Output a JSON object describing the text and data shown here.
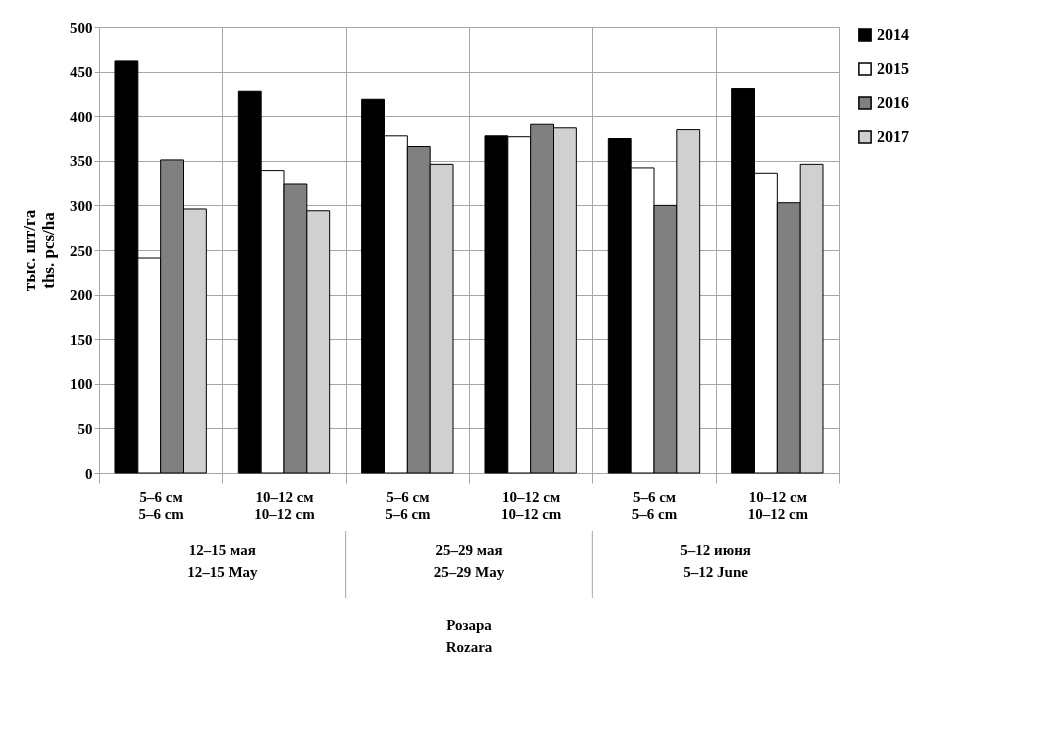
{
  "chart_data": {
    "type": "bar",
    "ylabel": "тыс. шт/га\nths. pcs/ha",
    "categories": [
      "5–6 см\n5–6 cm",
      "10–12 см\n10–12 cm",
      "5–6 см\n5–6 cm",
      "10–12 см\n10–12 cm",
      "5–6 см\n5–6 cm",
      "10–12 см\n10–12 cm"
    ],
    "series": [
      {
        "name": "2014",
        "color": "#000000",
        "values": [
          462,
          428,
          419,
          378,
          375,
          431
        ]
      },
      {
        "name": "2015",
        "color": "#ffffff",
        "values": [
          241,
          339,
          378,
          377,
          342,
          336
        ]
      },
      {
        "name": "2016",
        "color": "#808080",
        "values": [
          351,
          324,
          366,
          391,
          300,
          303
        ]
      },
      {
        "name": "2017",
        "color": "#d0d0d0",
        "values": [
          296,
          294,
          346,
          387,
          385,
          346
        ]
      }
    ],
    "annotations": [
      "12–15 мая\n12–15 May",
      "25–29 мая\n25–29 May",
      "5–12 июня\n5–12 June",
      "Розара\nRozara"
    ],
    "ylim": [
      0,
      500
    ],
    "yticks": [
      0,
      50,
      100,
      150,
      200,
      250,
      300,
      350,
      400,
      450,
      500
    ],
    "grid": true,
    "legend": "right"
  }
}
